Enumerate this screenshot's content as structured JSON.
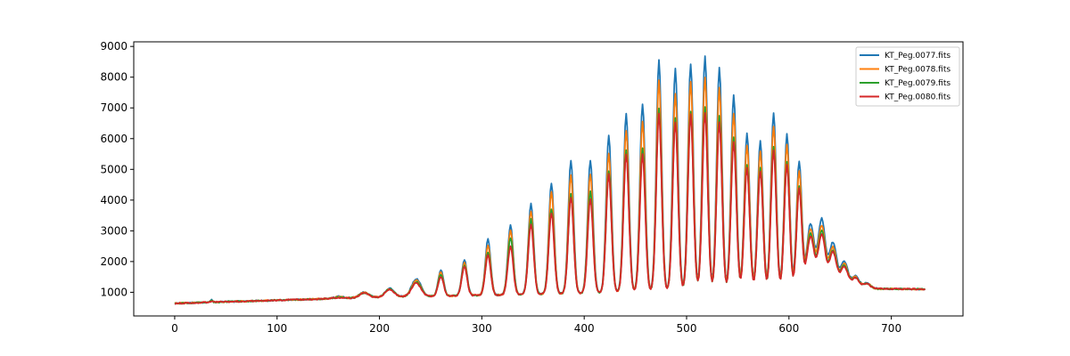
{
  "chart_data": {
    "type": "line",
    "title": "",
    "xlabel": "",
    "ylabel": "",
    "xlim": [
      -40,
      770
    ],
    "ylim": [
      230,
      9150
    ],
    "xticks": [
      0,
      100,
      200,
      300,
      400,
      500,
      600,
      700
    ],
    "yticks": [
      1000,
      2000,
      3000,
      4000,
      5000,
      6000,
      7000,
      8000,
      9000
    ],
    "xtick_labels": [
      "0",
      "100",
      "200",
      "300",
      "400",
      "500",
      "600",
      "700"
    ],
    "ytick_labels": [
      "1000",
      "2000",
      "3000",
      "4000",
      "5000",
      "6000",
      "7000",
      "8000",
      "9000"
    ],
    "grid": false,
    "legend_position": "top-right",
    "x_range": [
      0,
      733
    ],
    "baseline": [
      [
        0,
        640
      ],
      [
        50,
        690
      ],
      [
        100,
        740
      ],
      [
        150,
        790
      ],
      [
        190,
        830
      ],
      [
        230,
        860
      ],
      [
        280,
        890
      ],
      [
        330,
        920
      ],
      [
        400,
        970
      ],
      [
        470,
        1020
      ],
      [
        520,
        1060
      ],
      [
        580,
        1040
      ],
      [
        620,
        1000
      ],
      [
        660,
        1120
      ],
      [
        700,
        1110
      ],
      [
        733,
        1100
      ]
    ],
    "peak_positions": [
      36,
      160,
      185,
      210,
      236,
      260,
      283,
      306,
      328,
      348,
      368,
      387,
      406,
      424,
      441,
      457,
      473,
      489,
      504,
      518,
      532,
      546,
      559,
      572,
      585,
      598,
      610,
      621,
      632,
      643,
      654,
      665,
      676
    ],
    "series": [
      {
        "name": "KT_Peg.0077.fits",
        "color": "#1f77b4",
        "peaks": [
          760,
          860,
          1000,
          1120,
          1440,
          1720,
          2050,
          2720,
          3200,
          3870,
          4550,
          5280,
          5300,
          6100,
          6800,
          7140,
          8580,
          8300,
          8430,
          8680,
          8300,
          7400,
          6160,
          5930,
          6830,
          6150,
          5250,
          3220,
          3370,
          2600,
          2000,
          1520,
          1300
        ]
      },
      {
        "name": "KT_Peg.0078.fits",
        "color": "#ff7f0e",
        "peaks": [
          740,
          850,
          990,
          1110,
          1390,
          1650,
          1950,
          2520,
          3000,
          3650,
          4250,
          4800,
          4850,
          5500,
          6270,
          6560,
          7920,
          7450,
          7850,
          8000,
          7640,
          6800,
          5800,
          5570,
          6400,
          5800,
          4950,
          3050,
          3150,
          2450,
          1920,
          1500,
          1290
        ]
      },
      {
        "name": "KT_Peg.0079.fits",
        "color": "#2ca02c",
        "peaks": [
          720,
          840,
          980,
          1100,
          1340,
          1580,
          1880,
          2300,
          2780,
          3380,
          3720,
          4200,
          4280,
          4950,
          5620,
          5700,
          6970,
          6660,
          6900,
          7020,
          6730,
          6040,
          5150,
          5050,
          5750,
          5230,
          4450,
          2900,
          2970,
          2350,
          1870,
          1480,
          1280
        ]
      },
      {
        "name": "KT_Peg.0080.fits",
        "color": "#d62728",
        "peaks": [
          700,
          830,
          970,
          1090,
          1300,
          1520,
          1830,
          2200,
          2500,
          3200,
          3580,
          4100,
          4050,
          4850,
          5500,
          5500,
          6820,
          6550,
          6780,
          6860,
          6540,
          5900,
          5050,
          4950,
          5600,
          5150,
          4350,
          2800,
          2850,
          2300,
          1830,
          1460,
          1270
        ]
      }
    ]
  }
}
